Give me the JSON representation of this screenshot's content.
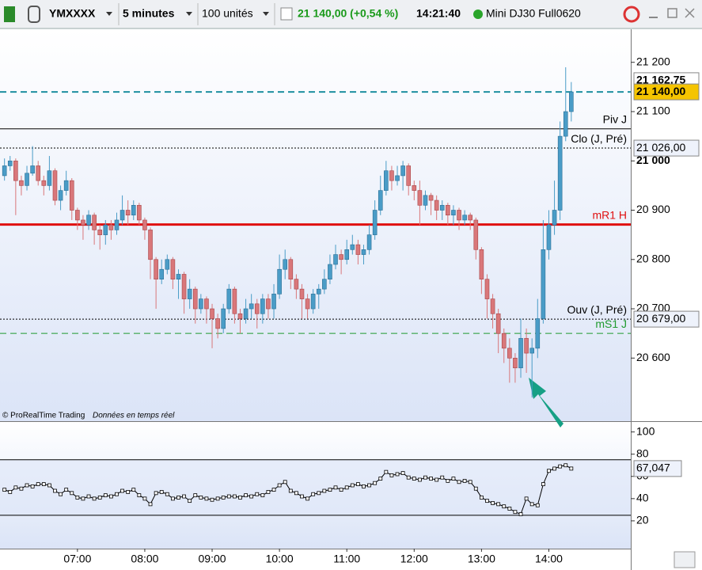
{
  "header": {
    "symbol": "YMXXXX",
    "timeframe": "5 minutes",
    "units": "100 unités",
    "last": "21 140,00 (+0,54 %)",
    "time": "14:21:40",
    "instrument": "Mini DJ30 Full0620"
  },
  "footer": {
    "copyright": "© ProRealTime Trading",
    "feed": "Données en temps réel"
  },
  "chart_data": [
    {
      "type": "candlestick",
      "up_color": "#4a9cc7",
      "down_color": "#d9777a",
      "xlim": [
        "05:51",
        "15:13"
      ],
      "ylim": [
        20472,
        21267
      ],
      "yticks": [
        {
          "value": 21200,
          "label": "21 200"
        },
        {
          "value": 21100,
          "label": "21 100"
        },
        {
          "value": 21000,
          "label": "21 000"
        },
        {
          "value": 20900,
          "label": "20 900"
        },
        {
          "value": 20800,
          "label": "20 800"
        },
        {
          "value": 20700,
          "label": "20 700"
        },
        {
          "value": 20600,
          "label": "20 600"
        }
      ],
      "x": [
        "05:55",
        "06:00",
        "06:05",
        "06:10",
        "06:15",
        "06:20",
        "06:25",
        "06:30",
        "06:35",
        "06:40",
        "06:45",
        "06:50",
        "06:55",
        "07:00",
        "07:05",
        "07:10",
        "07:15",
        "07:20",
        "07:25",
        "07:30",
        "07:35",
        "07:40",
        "07:45",
        "07:50",
        "07:55",
        "08:00",
        "08:05",
        "08:10",
        "08:15",
        "08:20",
        "08:25",
        "08:30",
        "08:35",
        "08:40",
        "08:45",
        "08:50",
        "08:55",
        "09:00",
        "09:05",
        "09:10",
        "09:15",
        "09:20",
        "09:25",
        "09:30",
        "09:35",
        "09:40",
        "09:45",
        "09:50",
        "09:55",
        "10:00",
        "10:05",
        "10:10",
        "10:15",
        "10:20",
        "10:25",
        "10:30",
        "10:35",
        "10:40",
        "10:45",
        "10:50",
        "10:55",
        "11:00",
        "11:05",
        "11:10",
        "11:15",
        "11:20",
        "11:25",
        "11:30",
        "11:35",
        "11:40",
        "11:45",
        "11:50",
        "11:55",
        "12:00",
        "12:05",
        "12:10",
        "12:15",
        "12:20",
        "12:25",
        "12:30",
        "12:35",
        "12:40",
        "12:45",
        "12:50",
        "12:55",
        "13:00",
        "13:05",
        "13:10",
        "13:15",
        "13:20",
        "13:25",
        "13:30",
        "13:35",
        "13:40",
        "13:45",
        "13:50",
        "13:55",
        "14:00",
        "14:05",
        "14:10",
        "14:15",
        "14:20"
      ],
      "candles": [
        [
          20970,
          21005,
          20960,
          20990
        ],
        [
          20990,
          21010,
          20980,
          21000
        ],
        [
          21000,
          21005,
          20890,
          20960
        ],
        [
          20960,
          20970,
          20930,
          20950
        ],
        [
          20950,
          20990,
          20940,
          20975
        ],
        [
          20975,
          21030,
          20970,
          20990
        ],
        [
          20990,
          21000,
          20950,
          20960
        ],
        [
          20960,
          20970,
          20930,
          20950
        ],
        [
          20950,
          21010,
          20940,
          20980
        ],
        [
          20980,
          20985,
          20910,
          20920
        ],
        [
          20920,
          20950,
          20900,
          20940
        ],
        [
          20940,
          20980,
          20930,
          20960
        ],
        [
          20960,
          20965,
          20880,
          20900
        ],
        [
          20900,
          20905,
          20860,
          20880
        ],
        [
          20880,
          20890,
          20840,
          20870
        ],
        [
          20870,
          20900,
          20860,
          20890
        ],
        [
          20890,
          20895,
          20830,
          20860
        ],
        [
          20860,
          20870,
          20820,
          20850
        ],
        [
          20850,
          20880,
          20830,
          20870
        ],
        [
          20870,
          20880,
          20840,
          20860
        ],
        [
          20860,
          20895,
          20850,
          20880
        ],
        [
          20880,
          20930,
          20870,
          20900
        ],
        [
          20900,
          20920,
          20870,
          20890
        ],
        [
          20890,
          20920,
          20880,
          20910
        ],
        [
          20910,
          20915,
          20870,
          20880
        ],
        [
          20880,
          20885,
          20840,
          20860
        ],
        [
          20860,
          20865,
          20760,
          20800
        ],
        [
          20800,
          20805,
          20700,
          20760
        ],
        [
          20760,
          20800,
          20750,
          20780
        ],
        [
          20780,
          20810,
          20770,
          20800
        ],
        [
          20800,
          20805,
          20740,
          20760
        ],
        [
          20760,
          20780,
          20720,
          20770
        ],
        [
          20770,
          20775,
          20690,
          20720
        ],
        [
          20720,
          20760,
          20700,
          20740
        ],
        [
          20740,
          20745,
          20670,
          20700
        ],
        [
          20700,
          20730,
          20690,
          20720
        ],
        [
          20720,
          20725,
          20670,
          20700
        ],
        [
          20700,
          20710,
          20620,
          20680
        ],
        [
          20680,
          20690,
          20640,
          20660
        ],
        [
          20660,
          20710,
          20650,
          20700
        ],
        [
          20700,
          20750,
          20690,
          20740
        ],
        [
          20740,
          20745,
          20670,
          20690
        ],
        [
          20690,
          20700,
          20650,
          20680
        ],
        [
          20680,
          20720,
          20670,
          20700
        ],
        [
          20700,
          20730,
          20680,
          20710
        ],
        [
          20710,
          20720,
          20660,
          20690
        ],
        [
          20690,
          20730,
          20670,
          20720
        ],
        [
          20720,
          20730,
          20680,
          20700
        ],
        [
          20700,
          20750,
          20680,
          20730
        ],
        [
          20730,
          20810,
          20720,
          20780
        ],
        [
          20780,
          20820,
          20760,
          20800
        ],
        [
          20800,
          20805,
          20740,
          20760
        ],
        [
          20760,
          20770,
          20720,
          20740
        ],
        [
          20740,
          20750,
          20680,
          20720
        ],
        [
          20720,
          20730,
          20680,
          20700
        ],
        [
          20700,
          20740,
          20690,
          20730
        ],
        [
          20730,
          20750,
          20700,
          20740
        ],
        [
          20740,
          20780,
          20730,
          20760
        ],
        [
          20760,
          20810,
          20750,
          20790
        ],
        [
          20790,
          20830,
          20780,
          20810
        ],
        [
          20810,
          20820,
          20770,
          20800
        ],
        [
          20800,
          20840,
          20790,
          20820
        ],
        [
          20820,
          20850,
          20810,
          20830
        ],
        [
          20830,
          20840,
          20790,
          20810
        ],
        [
          20810,
          20830,
          20790,
          20820
        ],
        [
          20820,
          20870,
          20810,
          20850
        ],
        [
          20850,
          20920,
          20840,
          20900
        ],
        [
          20900,
          20970,
          20890,
          20940
        ],
        [
          20940,
          21000,
          20930,
          20980
        ],
        [
          20980,
          20990,
          20940,
          20960
        ],
        [
          20960,
          20990,
          20950,
          20970
        ],
        [
          20970,
          21000,
          20940,
          20990
        ],
        [
          20990,
          20995,
          20930,
          20950
        ],
        [
          20950,
          20960,
          20920,
          20940
        ],
        [
          20940,
          20960,
          20870,
          20910
        ],
        [
          20910,
          20940,
          20900,
          20930
        ],
        [
          20930,
          20935,
          20890,
          20920
        ],
        [
          20920,
          20930,
          20880,
          20900
        ],
        [
          20900,
          20920,
          20880,
          20910
        ],
        [
          20910,
          20915,
          20870,
          20890
        ],
        [
          20890,
          20910,
          20870,
          20900
        ],
        [
          20900,
          20905,
          20860,
          20880
        ],
        [
          20880,
          20900,
          20870,
          20890
        ],
        [
          20890,
          20895,
          20860,
          20880
        ],
        [
          20880,
          20885,
          20800,
          20820
        ],
        [
          20820,
          20825,
          20730,
          20760
        ],
        [
          20760,
          20770,
          20680,
          20720
        ],
        [
          20720,
          20730,
          20660,
          20690
        ],
        [
          20690,
          20700,
          20610,
          20650
        ],
        [
          20650,
          20660,
          20590,
          20620
        ],
        [
          20620,
          20640,
          20550,
          20600
        ],
        [
          20600,
          20610,
          20550,
          20580
        ],
        [
          20580,
          20680,
          20560,
          20640
        ],
        [
          20640,
          20660,
          20570,
          20610
        ],
        [
          20610,
          20640,
          20520,
          20620
        ],
        [
          20620,
          20720,
          20600,
          20680
        ],
        [
          20680,
          20880,
          20670,
          20820
        ],
        [
          20820,
          20900,
          20800,
          20870
        ],
        [
          20870,
          20960,
          20850,
          20900
        ],
        [
          20900,
          21080,
          20880,
          21050
        ],
        [
          21050,
          21190,
          21040,
          21100
        ],
        [
          21100,
          21160,
          21080,
          21140
        ]
      ],
      "levels": [
        {
          "value": 21162.75,
          "value_label": "21 162,75",
          "badge": "#ffffff"
        },
        {
          "value": 21140,
          "value_label": "21 140,00",
          "color": "#1e8fa0",
          "dash": "dashed",
          "badge": "#f5c400"
        },
        {
          "name": "Piv J",
          "value": 21065,
          "color": "#000000",
          "dash": "solid"
        },
        {
          "name": "Clo (J, Pré)",
          "value": 21026,
          "value_label": "21 026,00",
          "color": "#000000",
          "dash": "dotted",
          "badge": "#eef2fb"
        },
        {
          "name": "mR1 H",
          "value": 20871,
          "color": "#e01010",
          "dash": "thick"
        },
        {
          "name": "Ouv (J, Pré)",
          "value": 20679,
          "value_label": "20 679,00",
          "color": "#000000",
          "dash": "dotted",
          "badge": "#eef2fb"
        },
        {
          "name": "mS1 J",
          "value": 20650,
          "color": "#1f9a2f",
          "dash": "dashed"
        }
      ]
    },
    {
      "type": "line",
      "color": "#000000",
      "xlim": [
        "05:51",
        "15:13"
      ],
      "ylim": [
        -5,
        109
      ],
      "yticks": [
        100,
        80,
        60,
        40,
        20
      ],
      "bands": [
        75,
        25
      ],
      "xticks": [
        "07:00",
        "08:00",
        "09:00",
        "10:00",
        "11:00",
        "12:00",
        "13:00",
        "14:00"
      ],
      "x": [
        "05:55",
        "06:00",
        "06:05",
        "06:10",
        "06:15",
        "06:20",
        "06:25",
        "06:30",
        "06:35",
        "06:40",
        "06:45",
        "06:50",
        "06:55",
        "07:00",
        "07:05",
        "07:10",
        "07:15",
        "07:20",
        "07:25",
        "07:30",
        "07:35",
        "07:40",
        "07:45",
        "07:50",
        "07:55",
        "08:00",
        "08:05",
        "08:10",
        "08:15",
        "08:20",
        "08:25",
        "08:30",
        "08:35",
        "08:40",
        "08:45",
        "08:50",
        "08:55",
        "09:00",
        "09:05",
        "09:10",
        "09:15",
        "09:20",
        "09:25",
        "09:30",
        "09:35",
        "09:40",
        "09:45",
        "09:50",
        "09:55",
        "10:00",
        "10:05",
        "10:10",
        "10:15",
        "10:20",
        "10:25",
        "10:30",
        "10:35",
        "10:40",
        "10:45",
        "10:50",
        "10:55",
        "11:00",
        "11:05",
        "11:10",
        "11:15",
        "11:20",
        "11:25",
        "11:30",
        "11:35",
        "11:40",
        "11:45",
        "11:50",
        "11:55",
        "12:00",
        "12:05",
        "12:10",
        "12:15",
        "12:20",
        "12:25",
        "12:30",
        "12:35",
        "12:40",
        "12:45",
        "12:50",
        "12:55",
        "13:00",
        "13:05",
        "13:10",
        "13:15",
        "13:20",
        "13:25",
        "13:30",
        "13:35",
        "13:40",
        "13:45",
        "13:50",
        "13:55",
        "14:00",
        "14:05",
        "14:10",
        "14:15",
        "14:20"
      ],
      "values": [
        48,
        46,
        50,
        49,
        52,
        51,
        53,
        53,
        52,
        47,
        44,
        48,
        45,
        41,
        40,
        42,
        40,
        41,
        43,
        42,
        44,
        47,
        46,
        48,
        43,
        40,
        35,
        45,
        46,
        44,
        40,
        41,
        42,
        38,
        43,
        41,
        40,
        39,
        40,
        41,
        42,
        42,
        41,
        43,
        42,
        44,
        43,
        46,
        48,
        52,
        55,
        47,
        45,
        42,
        40,
        44,
        45,
        47,
        48,
        50,
        48,
        50,
        52,
        53,
        51,
        52,
        54,
        58,
        64,
        61,
        62,
        63,
        59,
        58,
        57,
        59,
        58,
        57,
        59,
        56,
        58,
        55,
        56,
        55,
        49,
        41,
        38,
        36,
        35,
        33,
        31,
        28,
        26,
        40,
        35,
        34,
        53,
        65,
        67,
        69,
        70,
        67.047
      ],
      "value_label": "67,047"
    }
  ]
}
